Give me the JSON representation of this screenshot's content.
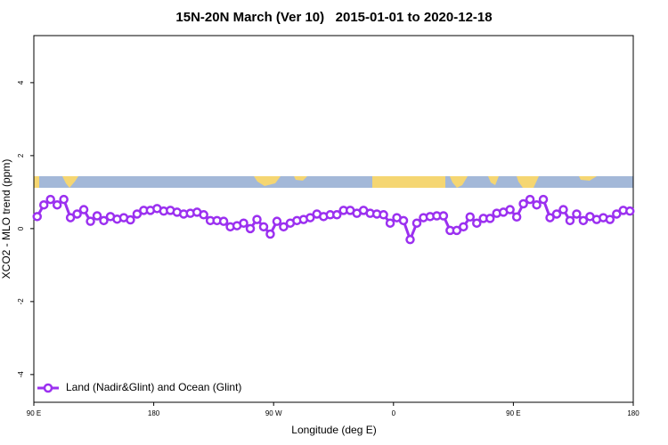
{
  "chart_data": {
    "type": "line",
    "title": "15N-20N March (Ver 10)   2015-01-01 to 2020-12-18",
    "xlabel": "Longitude (deg E)",
    "ylabel": "XCO2 - MLO trend (ppm)",
    "x": [
      92.5,
      97.5,
      102.5,
      107.5,
      112.5,
      117.5,
      122.5,
      127.5,
      132.5,
      137.5,
      142.5,
      147.5,
      152.5,
      157.5,
      162.5,
      167.5,
      172.5,
      177.5,
      182.5,
      187.5,
      192.5,
      197.5,
      202.5,
      207.5,
      212.5,
      217.5,
      222.5,
      227.5,
      232.5,
      237.5,
      242.5,
      247.5,
      252.5,
      257.5,
      262.5,
      267.5,
      272.5,
      277.5,
      282.5,
      287.5,
      292.5,
      297.5,
      302.5,
      307.5,
      312.5,
      317.5,
      322.5,
      327.5,
      332.5,
      337.5,
      342.5,
      347.5,
      352.5,
      357.5,
      362.5,
      367.5,
      372.5,
      377.5,
      382.5,
      387.5,
      392.5,
      397.5,
      402.5,
      407.5,
      412.5,
      417.5,
      422.5,
      427.5,
      432.5,
      437.5,
      442.5,
      447.5,
      452.5,
      457.5,
      462.5,
      467.5,
      472.5,
      477.5,
      482.5,
      487.5,
      492.5,
      497.5,
      502.5,
      507.5,
      512.5,
      517.5,
      522.5,
      527.5,
      532.5,
      537.5
    ],
    "series": [
      {
        "name": "Land (Nadir&Glint) and Ocean (Glint)",
        "color": "#9b30f0",
        "values": [
          0.33,
          0.65,
          0.8,
          0.65,
          0.8,
          0.3,
          0.4,
          0.52,
          0.2,
          0.35,
          0.22,
          0.33,
          0.26,
          0.3,
          0.24,
          0.4,
          0.5,
          0.5,
          0.55,
          0.48,
          0.5,
          0.45,
          0.4,
          0.42,
          0.45,
          0.38,
          0.22,
          0.22,
          0.2,
          0.05,
          0.08,
          0.15,
          0.0,
          0.25,
          0.05,
          -0.15,
          0.2,
          0.05,
          0.15,
          0.22,
          0.25,
          0.3,
          0.4,
          0.33,
          0.38,
          0.38,
          0.5,
          0.5,
          0.42,
          0.5,
          0.42,
          0.4,
          0.38,
          0.15,
          0.3,
          0.22,
          -0.3,
          0.15,
          0.3,
          0.33,
          0.35,
          0.35,
          -0.05,
          -0.05,
          0.05,
          0.32,
          0.15,
          0.28,
          0.28,
          0.42,
          0.45,
          0.52,
          0.32,
          0.68,
          0.8,
          0.65,
          0.8,
          0.3,
          0.4,
          0.52,
          0.22,
          0.4,
          0.22,
          0.33,
          0.25,
          0.3,
          0.25,
          0.4,
          0.5,
          0.48
        ]
      }
    ],
    "xlim": [
      90,
      540
    ],
    "xticks": [
      {
        "value": 90,
        "label": "90 E"
      },
      180,
      {
        "value": 270,
        "label": "90 W"
      },
      {
        "value": 360,
        "label": "0"
      },
      {
        "value": 450,
        "label": "90 E"
      },
      {
        "value": 540,
        "label": "180"
      }
    ],
    "ylim": [
      -4.76,
      5.29
    ],
    "yticks": [
      -4,
      -2,
      0,
      2,
      4
    ],
    "legend": "bottomleft",
    "grid": false
  }
}
